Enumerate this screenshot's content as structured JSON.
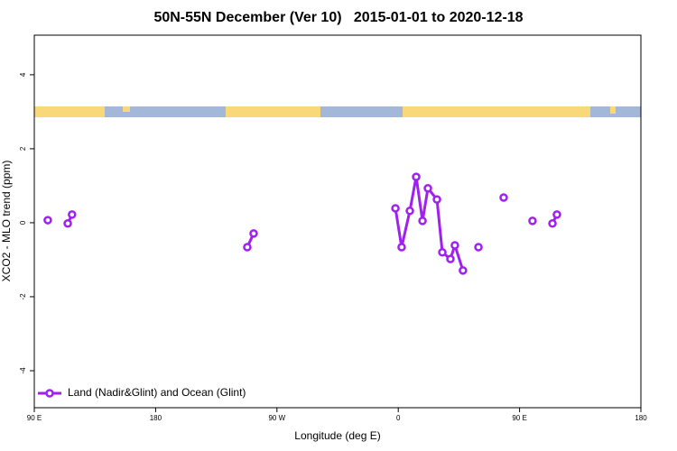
{
  "chart_data": {
    "type": "line",
    "title": "50N-55N December (Ver 10)   2015-01-01 to 2020-12-18",
    "x_label": "Longitude (deg E)",
    "y_label": "XCO2 - MLO trend (ppm)",
    "xlim": [
      90,
      540
    ],
    "ylim": [
      -5,
      5.07
    ],
    "xticks": [
      {
        "value": 90,
        "label": "90 E"
      },
      {
        "value": 180,
        "label": "180"
      },
      {
        "value": 270,
        "label": "90 W"
      },
      {
        "value": 360,
        "label": "0"
      },
      {
        "value": 450,
        "label": "90 E"
      },
      {
        "value": 540,
        "label": "180"
      }
    ],
    "yticks": [
      -4,
      -2,
      0,
      2,
      4
    ],
    "legend": "bottom-left",
    "series": [
      {
        "name": "Land (Nadir&Glint) and Ocean (Glint)",
        "color": "#a020f0",
        "x": [
          100,
          null,
          114.8,
          118,
          null,
          248,
          252.7,
          null,
          357.9,
          362.5,
          368.6,
          373.3,
          378,
          382,
          388.7,
          392.7,
          398.7,
          402,
          408,
          null,
          419.5,
          null,
          438.2,
          null,
          459.6,
          null,
          474.4,
          477.7
        ],
        "values": [
          0.07,
          null,
          -0.02,
          0.22,
          null,
          -0.66,
          -0.29,
          null,
          0.39,
          -0.66,
          0.32,
          1.24,
          0.05,
          0.93,
          0.63,
          -0.8,
          -0.98,
          -0.61,
          -1.29,
          null,
          -0.66,
          null,
          0.68,
          null,
          0.05,
          null,
          -0.02,
          0.22
        ]
      }
    ]
  }
}
